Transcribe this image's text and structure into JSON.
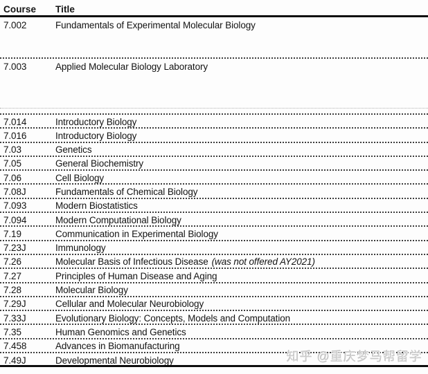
{
  "table": {
    "headers": {
      "course": "Course",
      "title": "Title"
    },
    "rows": [
      {
        "course": "7.002",
        "title": "Fundamentals of Experimental Molecular Biology",
        "note": ""
      },
      {
        "course": "7.003",
        "title": "Applied Molecular Biology Laboratory",
        "note": ""
      },
      {
        "course": "7.014",
        "title": "Introductory Biology",
        "note": ""
      },
      {
        "course": "7.016",
        "title": "Introductory Biology",
        "note": ""
      },
      {
        "course": "7.03",
        "title": "Genetics",
        "note": ""
      },
      {
        "course": "7.05",
        "title": "General Biochemistry",
        "note": ""
      },
      {
        "course": "7.06",
        "title": "Cell Biology",
        "note": ""
      },
      {
        "course": "7.08J",
        "title": "Fundamentals of Chemical Biology",
        "note": ""
      },
      {
        "course": "7.093",
        "title": "Modern Biostatistics",
        "note": ""
      },
      {
        "course": "7.094",
        "title": "Modern Computational Biology",
        "note": ""
      },
      {
        "course": "7.19",
        "title": "Communication in Experimental Biology",
        "note": ""
      },
      {
        "course": "7.23J",
        "title": "Immunology",
        "note": ""
      },
      {
        "course": "7.26",
        "title": "Molecular Basis of Infectious Disease",
        "note": "(was not offered AY2021)"
      },
      {
        "course": "7.27",
        "title": "Principles of Human Disease and Aging",
        "note": ""
      },
      {
        "course": "7.28",
        "title": "Molecular Biology",
        "note": ""
      },
      {
        "course": "7.29J",
        "title": "Cellular and Molecular Neurobiology",
        "note": ""
      },
      {
        "course": "7.33J",
        "title": "Evolutionary Biology: Concepts, Models and Computation",
        "note": ""
      },
      {
        "course": "7.35",
        "title": "Human Genomics and Genetics",
        "note": ""
      },
      {
        "course": "7.458",
        "title": "Advances in Biomanufacturing",
        "note": ""
      },
      {
        "course": "7.49J",
        "title": "Developmental Neurobiology",
        "note": ""
      }
    ]
  },
  "watermark": {
    "text": "知乎 @重庆梦马帮留学"
  },
  "colors": {
    "text": "#131313",
    "rule": "#0d0d0d",
    "dotted_separator": "#3c3c3c",
    "faint_separator": "#b2b2b2",
    "watermark_gray": "#cbcbcb",
    "background": "#fdfdfd"
  }
}
